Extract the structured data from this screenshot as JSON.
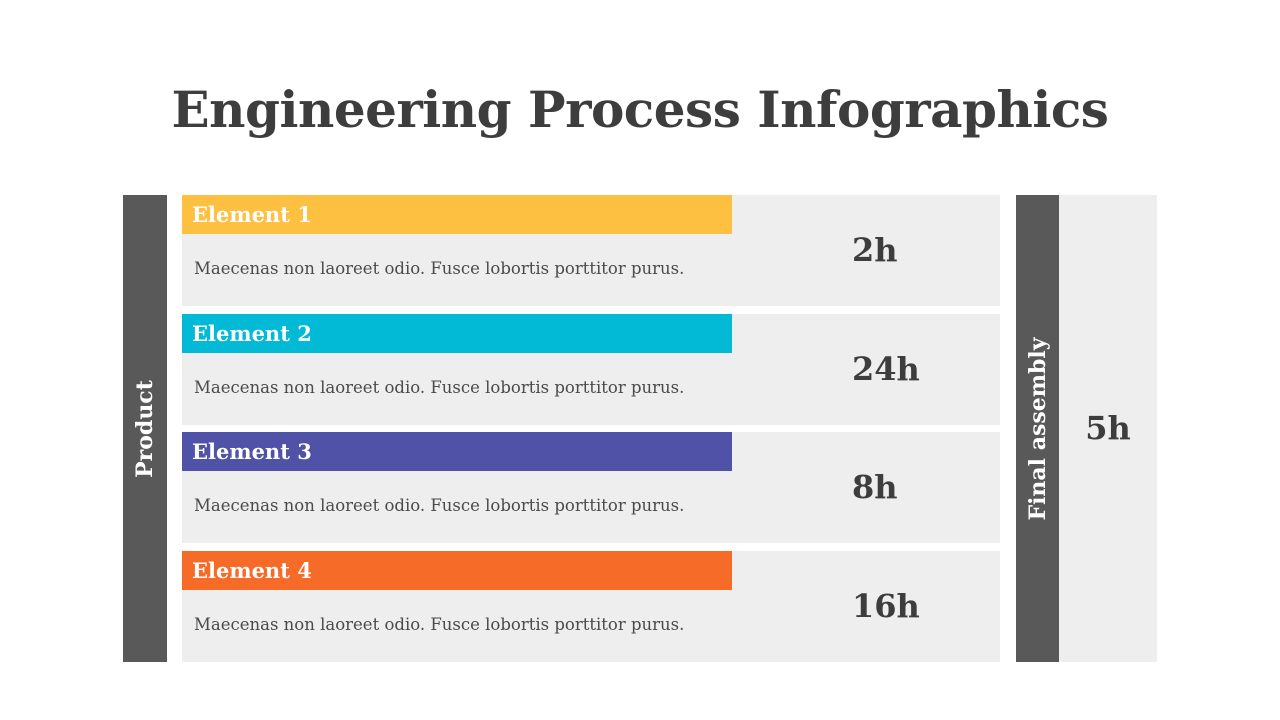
{
  "title": "Engineering Process Infographics",
  "left_group": {
    "label": "Product"
  },
  "elements": [
    {
      "label": "Element 1",
      "description": "Maecenas non laoreet odio. Fusce lobortis porttitor purus.",
      "time": "2h",
      "color": "#fec041"
    },
    {
      "label": "Element 2",
      "description": "Maecenas non laoreet odio. Fusce lobortis porttitor purus.",
      "time": "24h",
      "color": "#03bad6"
    },
    {
      "label": "Element 3",
      "description": "Maecenas non laoreet odio. Fusce lobortis porttitor purus.",
      "time": "8h",
      "color": "#5052a8"
    },
    {
      "label": "Element 4",
      "description": "Maecenas non laoreet odio. Fusce lobortis porttitor purus.",
      "time": "16h",
      "color": "#f76b28"
    }
  ],
  "final": {
    "label": "Final assembly",
    "time": "5h"
  }
}
